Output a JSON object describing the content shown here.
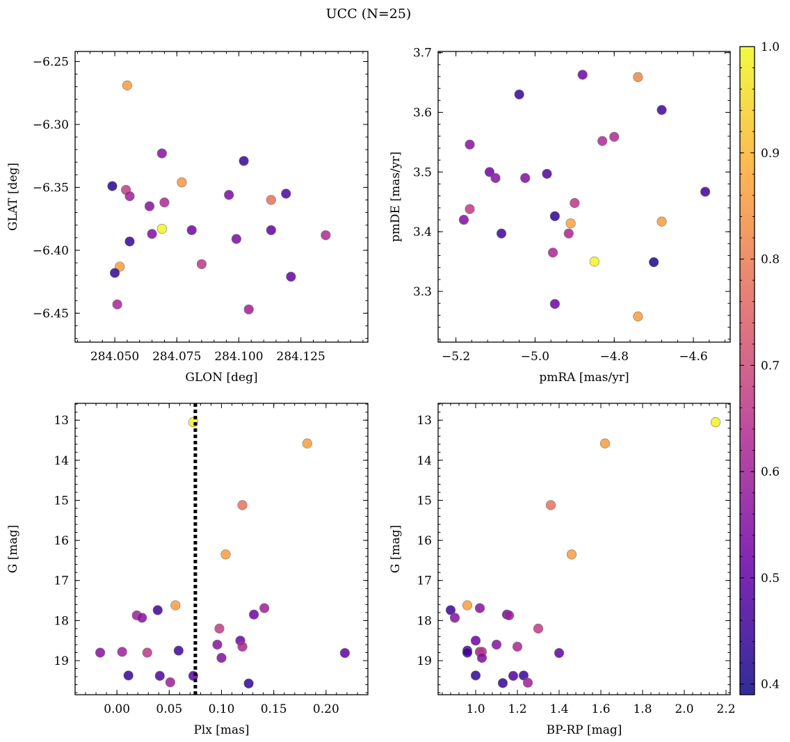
{
  "chart_data": {
    "type": "scatter",
    "title": "UCC (N=25)",
    "colorbar": {
      "range": [
        0.39,
        1.0
      ],
      "ticks": [
        0.4,
        0.5,
        0.6,
        0.7,
        0.8,
        0.9,
        1.0
      ],
      "tick_labels": [
        "0.4",
        "0.5",
        "0.6",
        "0.7",
        "0.8",
        "0.9",
        "1.0"
      ],
      "colormap_stops": [
        "#0d0887",
        "#6a00a8",
        "#b12a90",
        "#e16462",
        "#fca636",
        "#f0f921"
      ]
    },
    "panels": [
      {
        "xlabel": "GLON [deg]",
        "ylabel": "GLAT [deg]",
        "xlim": [
          284.034,
          284.152
        ],
        "ylim": [
          -6.473,
          -6.242
        ],
        "y_inverted": false,
        "xticks": [
          284.05,
          284.075,
          284.1,
          284.125
        ],
        "xtick_labels": [
          "284.050",
          "284.075",
          "284.100",
          "284.125"
        ],
        "yticks": [
          -6.25,
          -6.3,
          -6.35,
          -6.4,
          -6.45
        ],
        "ytick_labels": [
          "−6.25",
          "−6.30",
          "−6.35",
          "−6.40",
          "−6.45"
        ],
        "vline": null,
        "points": [
          {
            "x": 284.055,
            "y": -6.269,
            "c": 0.86
          },
          {
            "x": 284.069,
            "y": -6.323,
            "c": 0.56
          },
          {
            "x": 284.102,
            "y": -6.329,
            "c": 0.44
          },
          {
            "x": 284.049,
            "y": -6.349,
            "c": 0.42
          },
          {
            "x": 284.0545,
            "y": -6.352,
            "c": 0.67
          },
          {
            "x": 284.056,
            "y": -6.357,
            "c": 0.6
          },
          {
            "x": 284.077,
            "y": -6.346,
            "c": 0.85
          },
          {
            "x": 284.07,
            "y": -6.362,
            "c": 0.63
          },
          {
            "x": 284.064,
            "y": -6.365,
            "c": 0.56
          },
          {
            "x": 284.096,
            "y": -6.356,
            "c": 0.54
          },
          {
            "x": 284.113,
            "y": -6.36,
            "c": 0.78
          },
          {
            "x": 284.119,
            "y": -6.355,
            "c": 0.47
          },
          {
            "x": 284.056,
            "y": -6.393,
            "c": 0.44
          },
          {
            "x": 284.065,
            "y": -6.387,
            "c": 0.55
          },
          {
            "x": 284.069,
            "y": -6.383,
            "c": 0.99
          },
          {
            "x": 284.081,
            "y": -6.384,
            "c": 0.52
          },
          {
            "x": 284.099,
            "y": -6.391,
            "c": 0.54
          },
          {
            "x": 284.113,
            "y": -6.384,
            "c": 0.5
          },
          {
            "x": 284.135,
            "y": -6.388,
            "c": 0.63
          },
          {
            "x": 284.052,
            "y": -6.413,
            "c": 0.86
          },
          {
            "x": 284.05,
            "y": -6.418,
            "c": 0.44
          },
          {
            "x": 284.085,
            "y": -6.411,
            "c": 0.66
          },
          {
            "x": 284.121,
            "y": -6.421,
            "c": 0.5
          },
          {
            "x": 284.051,
            "y": -6.443,
            "c": 0.62
          },
          {
            "x": 284.104,
            "y": -6.447,
            "c": 0.6
          }
        ]
      },
      {
        "xlabel": "pmRA [mas/yr]",
        "ylabel": "pmDE [mas/yr]",
        "xlim": [
          -5.245,
          -4.507
        ],
        "ylim": [
          3.215,
          3.702
        ],
        "y_inverted": false,
        "xticks": [
          -5.2,
          -5.0,
          -4.8,
          -4.6
        ],
        "xtick_labels": [
          "−5.2",
          "−5.0",
          "−4.8",
          "−4.6"
        ],
        "yticks": [
          3.3,
          3.4,
          3.5,
          3.6,
          3.7
        ],
        "ytick_labels": [
          "3.3",
          "3.4",
          "3.5",
          "3.6",
          "3.7"
        ],
        "vline": null,
        "points": [
          {
            "x": -4.88,
            "y": 3.663,
            "c": 0.52
          },
          {
            "x": -4.74,
            "y": 3.659,
            "c": 0.82
          },
          {
            "x": -5.04,
            "y": 3.63,
            "c": 0.45
          },
          {
            "x": -4.68,
            "y": 3.604,
            "c": 0.46
          },
          {
            "x": -5.165,
            "y": 3.546,
            "c": 0.56
          },
          {
            "x": -4.83,
            "y": 3.552,
            "c": 0.63
          },
          {
            "x": -4.8,
            "y": 3.559,
            "c": 0.63
          },
          {
            "x": -5.115,
            "y": 3.5,
            "c": 0.52
          },
          {
            "x": -5.1,
            "y": 3.49,
            "c": 0.56
          },
          {
            "x": -5.025,
            "y": 3.49,
            "c": 0.55
          },
          {
            "x": -4.97,
            "y": 3.497,
            "c": 0.48
          },
          {
            "x": -4.57,
            "y": 3.467,
            "c": 0.45
          },
          {
            "x": -5.165,
            "y": 3.438,
            "c": 0.67
          },
          {
            "x": -5.18,
            "y": 3.42,
            "c": 0.55
          },
          {
            "x": -4.9,
            "y": 3.448,
            "c": 0.66
          },
          {
            "x": -4.95,
            "y": 3.426,
            "c": 0.43
          },
          {
            "x": -4.91,
            "y": 3.414,
            "c": 0.87
          },
          {
            "x": -4.68,
            "y": 3.417,
            "c": 0.86
          },
          {
            "x": -5.085,
            "y": 3.397,
            "c": 0.46
          },
          {
            "x": -4.915,
            "y": 3.397,
            "c": 0.62
          },
          {
            "x": -4.955,
            "y": 3.365,
            "c": 0.62
          },
          {
            "x": -4.85,
            "y": 3.35,
            "c": 0.99
          },
          {
            "x": -4.7,
            "y": 3.349,
            "c": 0.41
          },
          {
            "x": -4.95,
            "y": 3.279,
            "c": 0.52
          },
          {
            "x": -4.74,
            "y": 3.258,
            "c": 0.86
          }
        ]
      },
      {
        "xlabel": "Plx [mas]",
        "ylabel": "G [mag]",
        "xlim": [
          -0.04,
          0.24
        ],
        "ylim": [
          12.58,
          19.85
        ],
        "y_inverted": true,
        "xticks": [
          0.0,
          0.05,
          0.1,
          0.15,
          0.2
        ],
        "xtick_labels": [
          "0.00",
          "0.05",
          "0.10",
          "0.15",
          "0.20"
        ],
        "yticks": [
          13,
          14,
          15,
          16,
          17,
          18,
          19
        ],
        "ytick_labels": [
          "13",
          "14",
          "15",
          "16",
          "17",
          "18",
          "19"
        ],
        "vline": 0.075,
        "points": [
          {
            "x": 0.073,
            "y": 13.05,
            "c": 0.99
          },
          {
            "x": 0.182,
            "y": 13.58,
            "c": 0.86
          },
          {
            "x": 0.12,
            "y": 15.12,
            "c": 0.78
          },
          {
            "x": 0.104,
            "y": 16.35,
            "c": 0.86
          },
          {
            "x": 0.056,
            "y": 17.62,
            "c": 0.86
          },
          {
            "x": 0.039,
            "y": 17.74,
            "c": 0.45
          },
          {
            "x": 0.141,
            "y": 17.69,
            "c": 0.6
          },
          {
            "x": 0.019,
            "y": 17.87,
            "c": 0.6
          },
          {
            "x": 0.024,
            "y": 17.93,
            "c": 0.56
          },
          {
            "x": 0.131,
            "y": 17.85,
            "c": 0.52
          },
          {
            "x": 0.098,
            "y": 18.2,
            "c": 0.67
          },
          {
            "x": 0.118,
            "y": 18.5,
            "c": 0.52
          },
          {
            "x": 0.096,
            "y": 18.6,
            "c": 0.56
          },
          {
            "x": 0.12,
            "y": 18.65,
            "c": 0.62
          },
          {
            "x": -0.016,
            "y": 18.8,
            "c": 0.56
          },
          {
            "x": 0.005,
            "y": 18.78,
            "c": 0.6
          },
          {
            "x": 0.029,
            "y": 18.8,
            "c": 0.66
          },
          {
            "x": 0.059,
            "y": 18.75,
            "c": 0.46
          },
          {
            "x": 0.1,
            "y": 18.93,
            "c": 0.55
          },
          {
            "x": 0.218,
            "y": 18.81,
            "c": 0.5
          },
          {
            "x": 0.011,
            "y": 19.37,
            "c": 0.44
          },
          {
            "x": 0.041,
            "y": 19.38,
            "c": 0.48
          },
          {
            "x": 0.073,
            "y": 19.38,
            "c": 0.5
          },
          {
            "x": 0.051,
            "y": 19.54,
            "c": 0.6
          },
          {
            "x": 0.126,
            "y": 19.57,
            "c": 0.44
          }
        ]
      },
      {
        "xlabel": "BP-RP [mag]",
        "ylabel": "G [mag]",
        "xlim": [
          0.82,
          2.22
        ],
        "ylim": [
          12.58,
          19.85
        ],
        "y_inverted": true,
        "xticks": [
          1.0,
          1.2,
          1.4,
          1.6,
          1.8,
          2.0,
          2.2
        ],
        "xtick_labels": [
          "1.0",
          "1.2",
          "1.4",
          "1.6",
          "1.8",
          "2.0",
          "2.2"
        ],
        "yticks": [
          13,
          14,
          15,
          16,
          17,
          18,
          19
        ],
        "ytick_labels": [
          "13",
          "14",
          "15",
          "16",
          "17",
          "18",
          "19"
        ],
        "vline": null,
        "points": [
          {
            "x": 2.15,
            "y": 13.05,
            "c": 0.99
          },
          {
            "x": 1.62,
            "y": 13.58,
            "c": 0.86
          },
          {
            "x": 1.36,
            "y": 15.12,
            "c": 0.78
          },
          {
            "x": 1.46,
            "y": 16.35,
            "c": 0.86
          },
          {
            "x": 0.96,
            "y": 17.62,
            "c": 0.86
          },
          {
            "x": 0.88,
            "y": 17.74,
            "c": 0.45
          },
          {
            "x": 1.02,
            "y": 17.69,
            "c": 0.56
          },
          {
            "x": 0.9,
            "y": 17.93,
            "c": 0.56
          },
          {
            "x": 1.15,
            "y": 17.85,
            "c": 0.52
          },
          {
            "x": 1.16,
            "y": 17.87,
            "c": 0.6
          },
          {
            "x": 1.3,
            "y": 18.2,
            "c": 0.67
          },
          {
            "x": 1.0,
            "y": 18.5,
            "c": 0.52
          },
          {
            "x": 1.1,
            "y": 18.6,
            "c": 0.56
          },
          {
            "x": 1.2,
            "y": 18.65,
            "c": 0.62
          },
          {
            "x": 0.96,
            "y": 18.75,
            "c": 0.46
          },
          {
            "x": 0.96,
            "y": 18.8,
            "c": 0.45
          },
          {
            "x": 1.02,
            "y": 18.78,
            "c": 0.6
          },
          {
            "x": 1.03,
            "y": 18.78,
            "c": 0.66
          },
          {
            "x": 1.03,
            "y": 18.93,
            "c": 0.55
          },
          {
            "x": 1.4,
            "y": 18.81,
            "c": 0.5
          },
          {
            "x": 1.0,
            "y": 19.37,
            "c": 0.44
          },
          {
            "x": 1.18,
            "y": 19.38,
            "c": 0.48
          },
          {
            "x": 1.23,
            "y": 19.37,
            "c": 0.45
          },
          {
            "x": 1.13,
            "y": 19.56,
            "c": 0.44
          },
          {
            "x": 1.25,
            "y": 19.55,
            "c": 0.6
          }
        ]
      }
    ]
  }
}
